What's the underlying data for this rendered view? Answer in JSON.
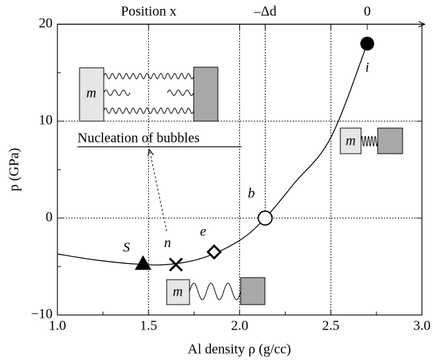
{
  "chart_data": {
    "type": "line",
    "x_label": "Al density ρ  (g/cc)",
    "y_label": "p  (GPa)",
    "top_label": "Position x",
    "top_ticks": [
      {
        "value": 2.14,
        "label": "–Δd"
      },
      {
        "value": 2.7,
        "label": "0"
      }
    ],
    "annotation": "Nucleation of bubbles",
    "mass_label": "m",
    "x": [
      1.0,
      1.2,
      1.4,
      1.6,
      1.8,
      2.0,
      2.14,
      2.3,
      2.5,
      2.7
    ],
    "series": [
      {
        "color": "#000000",
        "values": [
          -3.7,
          -4.3,
          -4.7,
          -4.8,
          -4.1,
          -2.3,
          0,
          3.6,
          8.3,
          18
        ]
      }
    ],
    "points": [
      {
        "label": "S",
        "x": 1.47,
        "y": -4.7,
        "marker": "triangle"
      },
      {
        "label": "n",
        "x": 1.65,
        "y": -4.8,
        "marker": "cross"
      },
      {
        "label": "e",
        "x": 1.86,
        "y": -3.5,
        "marker": "diamond"
      },
      {
        "label": "b",
        "x": 2.14,
        "y": 0,
        "marker": "open-circle"
      },
      {
        "label": "i",
        "x": 2.7,
        "y": 18,
        "marker": "filled-circle"
      }
    ],
    "xlim": [
      1.0,
      3.0
    ],
    "ylim": [
      -10,
      20
    ],
    "xticks": [
      {
        "value": 1,
        "label": "1.0"
      },
      {
        "value": 1.5,
        "label": "1.5"
      },
      {
        "value": 2,
        "label": "2.0"
      },
      {
        "value": 2.5,
        "label": "2.5"
      },
      {
        "value": 3,
        "label": "3.0"
      }
    ],
    "yticks": [
      {
        "value": -10,
        "label": "−10"
      },
      0,
      10,
      20
    ],
    "xminorticks": [
      1.25,
      1.75,
      2.25,
      2.75
    ],
    "yminorticks": [
      -5,
      5,
      15
    ],
    "vgrid": [
      1.5,
      2.0,
      2.5
    ],
    "hgrid": [
      0,
      10
    ]
  }
}
